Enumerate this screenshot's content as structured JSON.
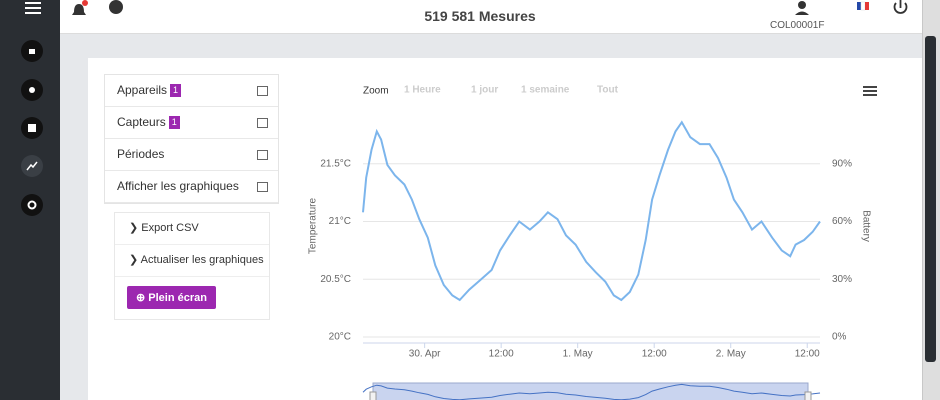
{
  "header": {
    "title": "519 581 Mesures",
    "user": "COL00001F"
  },
  "menu": {
    "items": [
      {
        "label": "Appareils",
        "badge": "1"
      },
      {
        "label": "Capteurs",
        "badge": "1"
      },
      {
        "label": "Périodes"
      },
      {
        "label": "Afficher les graphiques"
      }
    ],
    "actions": [
      "Export CSV",
      "Actualiser les graphiques"
    ],
    "button": "Plein écran"
  },
  "zoom": {
    "label": "Zoom",
    "options": [
      "1 Heure",
      "1 jour",
      "1 semaine",
      "Tout"
    ]
  },
  "chart_data": {
    "type": "line",
    "color": "#7cb5ec",
    "y_label": "Temperature",
    "y2_label": "Battery",
    "x": [
      "29. Apr 14:20",
      "29. Apr 14:50",
      "29. Apr 15:40",
      "29. Apr 16:30",
      "29. Apr 17:10",
      "29. Apr 18:10",
      "29. Apr 19:20",
      "29. Apr 20:50",
      "29. Apr 22:00",
      "29. Apr 23:10",
      "30. Apr 00:30",
      "30. Apr 01:40",
      "30. Apr 03:00",
      "30. Apr 04:20",
      "30. Apr 05:30",
      "30. Apr 07:00",
      "30. Apr 08:40",
      "30. Apr 10:30",
      "30. Apr 11:50",
      "30. Apr 13:20",
      "30. Apr 14:50",
      "30. Apr 16:30",
      "30. Apr 18:00",
      "30. Apr 19:20",
      "30. Apr 20:50",
      "30. Apr 22:10",
      "30. Apr 23:40",
      "1. May 01:20",
      "1. May 02:50",
      "1. May 04:20",
      "1. May 05:40",
      "1. May 06:50",
      "1. May 08:10",
      "1. May 09:30",
      "1. May 10:40",
      "1. May 11:40",
      "1. May 12:50",
      "1. May 14:10",
      "1. May 15:20",
      "1. May 16:20",
      "1. May 17:40",
      "1. May 19:10",
      "1. May 20:40",
      "1. May 22:00",
      "1. May 23:20",
      "2. May 00:30",
      "2. May 01:50",
      "2. May 03:20",
      "2. May 04:50",
      "2. May 06:30",
      "2. May 08:00",
      "2. May 09:20",
      "2. May 10:10",
      "2. May 11:30",
      "2. May 12:50",
      "2. May 14:00"
    ],
    "values": [
      21.08,
      21.38,
      21.62,
      21.78,
      21.71,
      21.49,
      21.4,
      21.32,
      21.19,
      21.02,
      20.86,
      20.62,
      20.45,
      20.36,
      20.32,
      20.41,
      20.49,
      20.58,
      20.75,
      20.88,
      21.0,
      20.93,
      21.0,
      21.08,
      21.02,
      20.88,
      20.8,
      20.65,
      20.56,
      20.48,
      20.36,
      20.32,
      20.39,
      20.54,
      20.84,
      21.19,
      21.4,
      21.62,
      21.78,
      21.86,
      21.73,
      21.67,
      21.67,
      21.55,
      21.38,
      21.19,
      21.08,
      20.93,
      21.0,
      20.86,
      20.75,
      20.7,
      20.8,
      20.84,
      20.91,
      21.0
    ],
    "xlim": [
      "29. Apr 14:20",
      "2. May 14:00"
    ],
    "xticks": [
      {
        "value": "30. Apr 00:00",
        "label": "30. Apr"
      },
      {
        "value": "30. Apr 12:00",
        "label": "12:00"
      },
      {
        "value": "1. May 00:00",
        "label": "1. May"
      },
      {
        "value": "1. May 12:00",
        "label": "12:00"
      },
      {
        "value": "2. May 00:00",
        "label": "2. May"
      },
      {
        "value": "2. May 12:00",
        "label": "12:00"
      }
    ],
    "ylim": [
      20,
      22
    ],
    "yticks": [
      {
        "value": 20,
        "label": "20°C"
      },
      {
        "value": 20.5,
        "label": "20.5°C"
      },
      {
        "value": 21,
        "label": "21°C"
      },
      {
        "value": 21.5,
        "label": "21.5°C"
      }
    ],
    "y2lim": [
      0,
      120
    ],
    "y2ticks": [
      {
        "value": 0,
        "label": "0%"
      },
      {
        "value": 30,
        "label": "30%"
      },
      {
        "value": 60,
        "label": "60%"
      },
      {
        "value": 90,
        "label": "90%"
      }
    ],
    "grid": true
  }
}
